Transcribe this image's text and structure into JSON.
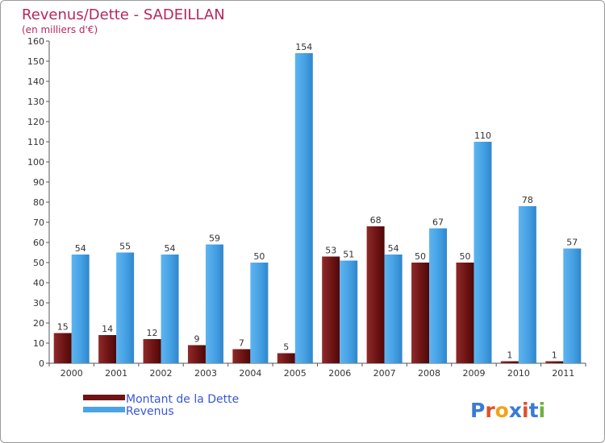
{
  "chart_data": {
    "type": "bar",
    "title": "Revenus/Dette - SADEILLAN",
    "subtitle": "(en milliers d'€)",
    "categories": [
      "2000",
      "2001",
      "2002",
      "2003",
      "2004",
      "2005",
      "2006",
      "2007",
      "2008",
      "2009",
      "2010",
      "2011"
    ],
    "series": [
      {
        "name": "Montant de la Dette",
        "color": "#7a1a1a",
        "values": [
          15,
          14,
          12,
          9,
          7,
          5,
          53,
          68,
          50,
          50,
          1,
          1
        ]
      },
      {
        "name": "Revenus",
        "color": "#4aa3e6",
        "values": [
          54,
          55,
          54,
          59,
          50,
          154,
          51,
          54,
          67,
          110,
          78,
          57
        ]
      }
    ],
    "ylim": [
      0,
      160
    ],
    "ytick_step": 10,
    "grid": false,
    "legend": "bottom-left"
  },
  "logo": {
    "text": "Proxiti"
  }
}
